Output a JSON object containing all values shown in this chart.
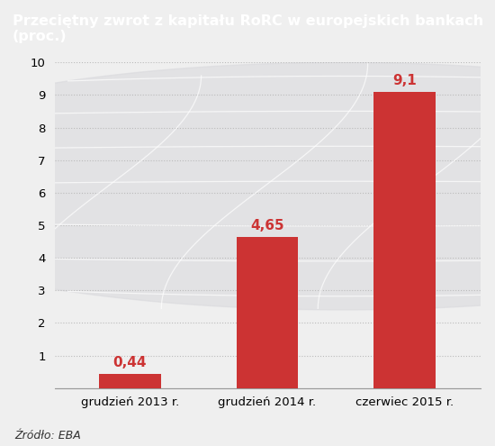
{
  "title": "Przeciętny zwrot z kapitału RoRC w europejskich bankach (proc.)",
  "categories": [
    "grudzień 2013 r.",
    "grudzień 2014 r.",
    "czerwiec 2015 r."
  ],
  "values": [
    0.44,
    4.65,
    9.1
  ],
  "value_labels": [
    "0,44",
    "4,65",
    "9,1"
  ],
  "bar_color": "#cc3333",
  "title_bg_color": "#1a2a6c",
  "title_text_color": "#ffffff",
  "chart_bg_color": "#efefef",
  "grid_color": "#bbbbbb",
  "ylim": [
    0,
    10
  ],
  "yticks": [
    0,
    1,
    2,
    3,
    4,
    5,
    6,
    7,
    8,
    9,
    10
  ],
  "source_text": "Źródło: EBA",
  "watermark_color": "#d8d8dc"
}
